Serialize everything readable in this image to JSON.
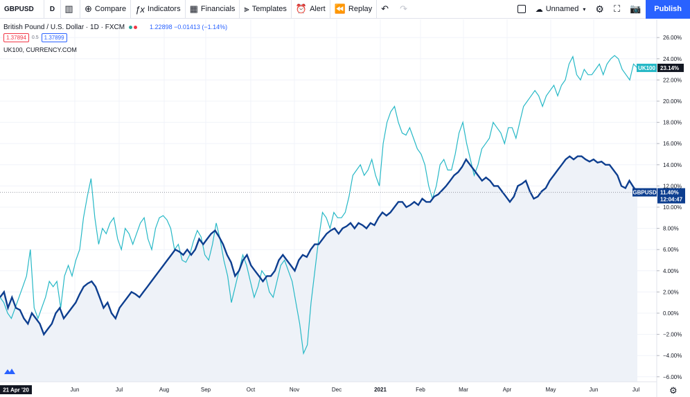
{
  "toolbar": {
    "symbol": "GBPUSD",
    "interval": "D",
    "compare": "Compare",
    "indicators": "Indicators",
    "financials": "Financials",
    "templates": "Templates",
    "alert": "Alert",
    "replay": "Replay",
    "layout_name": "Unnamed",
    "publish": "Publish"
  },
  "legend": {
    "title": "British Pound / U.S. Dollar · 1D · FXCM",
    "ohlc": "1.22898 −0.01413 (−1.14%)",
    "bid": "1.37894",
    "spread": "0.5",
    "ask": "1.37899",
    "compare_symbol": "UK100, CURRENCY.COM"
  },
  "colors": {
    "gbpusd": "#0d3e8f",
    "uk100": "#26b8c6",
    "area_fill": "#eef2f8",
    "grid": "#f0f3fa",
    "accent": "#2962ff"
  },
  "chart_data": {
    "type": "line",
    "y_unit": "%",
    "ylim": [
      -6.5,
      27
    ],
    "y_ticks": [
      "26.00%",
      "24.00%",
      "22.00%",
      "20.00%",
      "18.00%",
      "16.00%",
      "14.00%",
      "12.00%",
      "10.00%",
      "8.00%",
      "6.00%",
      "4.00%",
      "2.00%",
      "0.00%",
      "−2.00%",
      "−4.00%",
      "−6.00%"
    ],
    "x_ticks": [
      "Jun",
      "Jul",
      "Aug",
      "Sep",
      "Oct",
      "Nov",
      "Dec",
      "2021",
      "Feb",
      "Mar",
      "Apr",
      "May",
      "Jun",
      "Jul"
    ],
    "start_date_label": "21 Apr '20",
    "series": [
      {
        "name": "UK100",
        "last_label": "23.14%",
        "last_value": 23.14,
        "values": [
          1.5,
          1,
          0,
          -0.5,
          0.5,
          1.5,
          2.5,
          3.5,
          6,
          0.5,
          -0.5,
          0.5,
          1.5,
          3,
          2.5,
          3,
          0.5,
          3.5,
          4.5,
          3.5,
          5,
          6,
          9,
          11,
          12.7,
          9,
          6.5,
          8,
          7.5,
          8.5,
          9,
          7,
          6,
          8,
          7.5,
          6.5,
          7.5,
          8.5,
          9,
          7,
          6,
          8,
          9,
          9.2,
          8.8,
          8,
          6,
          6.5,
          5,
          4.8,
          5.5,
          6.8,
          7.8,
          7.2,
          5.5,
          5,
          6.5,
          8.5,
          7,
          5,
          3.5,
          1,
          2.5,
          4,
          5.5,
          4.5,
          3,
          1.5,
          2.5,
          4,
          3.5,
          2,
          1.5,
          3,
          4.5,
          5,
          4,
          3,
          1,
          -1,
          -3.8,
          -3,
          1,
          4,
          7,
          9.5,
          9,
          8,
          9.5,
          9,
          9,
          9.5,
          11,
          13,
          13.5,
          14,
          13,
          13.5,
          14.5,
          13,
          12,
          16,
          18,
          19,
          19.5,
          18,
          17,
          16.8,
          17.5,
          16.5,
          15.5,
          15,
          14,
          12,
          10.8,
          12,
          14,
          14.5,
          13.5,
          13.5,
          15,
          17,
          18,
          16,
          14.5,
          13,
          14,
          15.5,
          16,
          16.5,
          18,
          17.5,
          17,
          16,
          17.5,
          17.5,
          16.5,
          18,
          19.5,
          20,
          20.5,
          21,
          20.5,
          19.5,
          20.5,
          21,
          21.5,
          20.5,
          21.5,
          22,
          23.5,
          24.2,
          22.5,
          22,
          23,
          22.5,
          22.5,
          23,
          23.5,
          22.5,
          23.5,
          24,
          24.3,
          24,
          23,
          22.5,
          22,
          23.5,
          23.14
        ]
      },
      {
        "name": "GBPUSD",
        "last_label": "11.40%",
        "last_value": 11.4,
        "last_time_label": "12:04:47",
        "values": [
          1.5,
          2,
          0.5,
          1.5,
          0.5,
          0.3,
          -0.5,
          -1,
          0,
          -0.5,
          -1,
          -2,
          -1.5,
          -1,
          0,
          0.5,
          -0.5,
          0,
          0.5,
          1,
          1.8,
          2.5,
          2.8,
          3,
          2.5,
          1.5,
          0.5,
          1,
          0,
          -0.5,
          0.5,
          1,
          1.5,
          2,
          1.8,
          1.5,
          2,
          2.5,
          3,
          3.5,
          4,
          4.5,
          5,
          5.5,
          6,
          5.8,
          5.5,
          6,
          5.5,
          6,
          7,
          6.5,
          7,
          7.5,
          7.8,
          7.2,
          6.5,
          5.5,
          4.8,
          3.5,
          4,
          5,
          5.5,
          4.5,
          4,
          3.5,
          3,
          3.5,
          3.5,
          4,
          5,
          5.5,
          5,
          4.5,
          4,
          5,
          5.5,
          5.3,
          6,
          6.5,
          6.5,
          7,
          7.5,
          7.8,
          8,
          7.5,
          8,
          8.2,
          8.5,
          8,
          8.5,
          8.3,
          8,
          8.5,
          8.3,
          9,
          9.5,
          9.2,
          9.5,
          10,
          10.5,
          10.5,
          10,
          10.2,
          10.5,
          10.2,
          10.8,
          10.5,
          10.5,
          11,
          11.2,
          11.6,
          12,
          12.5,
          13,
          13.3,
          13.8,
          14.5,
          14,
          13.5,
          13,
          12.5,
          12.8,
          12.5,
          12,
          12,
          11.5,
          11,
          10.5,
          11,
          12,
          12.2,
          12.5,
          11.5,
          10.8,
          11,
          11.5,
          11.8,
          12.5,
          13,
          13.5,
          14,
          14.5,
          14.8,
          14.5,
          14.8,
          14.8,
          14.5,
          14.3,
          14.5,
          14.2,
          14.3,
          14,
          14,
          13.5,
          13,
          12,
          11.8,
          12.5,
          11.9,
          11.4
        ]
      }
    ]
  }
}
